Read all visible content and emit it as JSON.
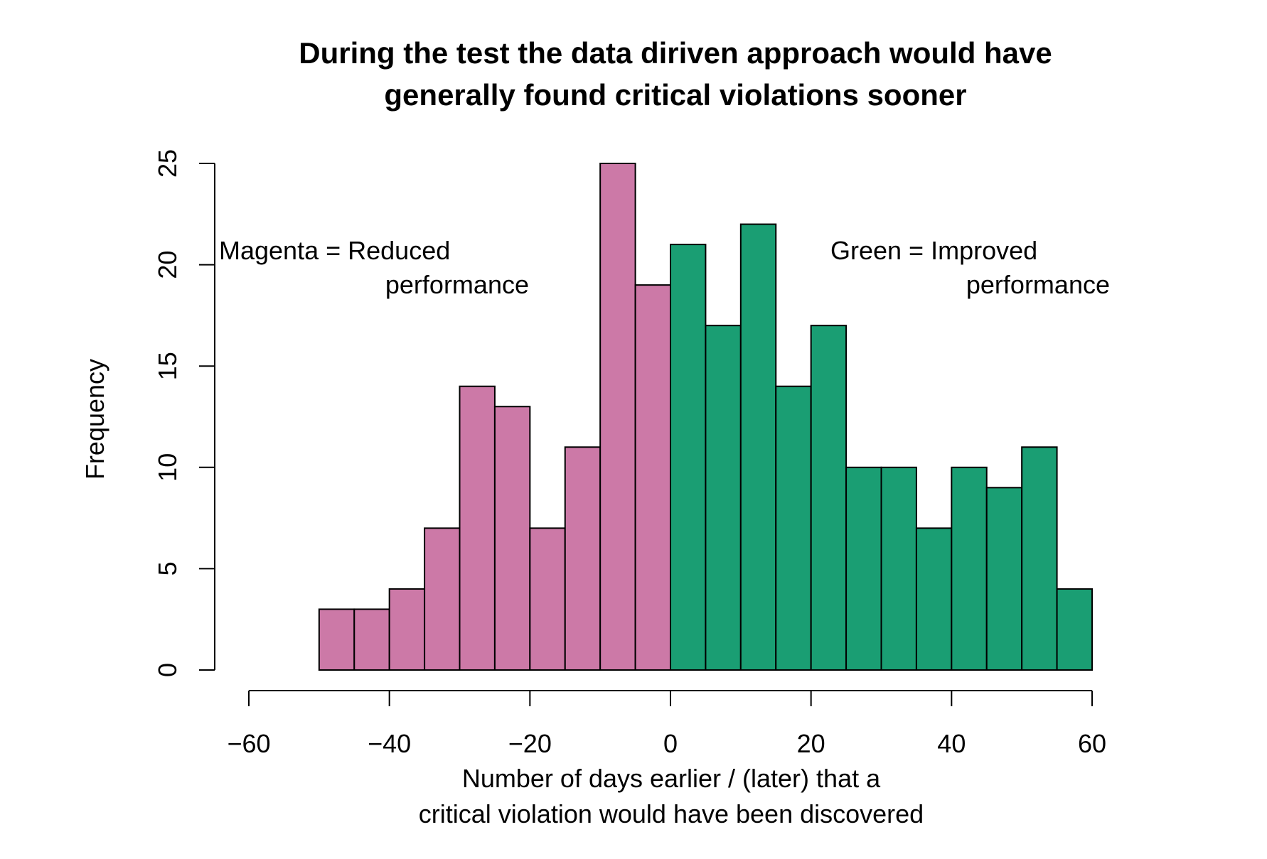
{
  "chart_data": {
    "type": "bar",
    "title_lines": [
      "During the test the data diriven approach would have",
      "generally found critical violations sooner"
    ],
    "xlabel_lines": [
      "Number of days earlier / (later) that a",
      "critical violation would have been discovered"
    ],
    "ylabel": "Frequency",
    "xlim": [
      -60,
      60
    ],
    "ylim": [
      0,
      25
    ],
    "x_ticks": [
      -60,
      -40,
      -20,
      0,
      20,
      40,
      60
    ],
    "x_tick_labels": [
      "−60",
      "−40",
      "−20",
      "0",
      "20",
      "40",
      "60"
    ],
    "y_ticks": [
      0,
      5,
      10,
      15,
      20,
      25
    ],
    "y_tick_labels": [
      "0",
      "5",
      "10",
      "15",
      "20",
      "25"
    ],
    "bin_width": 5,
    "bins": [
      {
        "start": -50,
        "end": -45,
        "value": 3
      },
      {
        "start": -45,
        "end": -40,
        "value": 3
      },
      {
        "start": -40,
        "end": -35,
        "value": 4
      },
      {
        "start": -35,
        "end": -30,
        "value": 7
      },
      {
        "start": -30,
        "end": -25,
        "value": 14
      },
      {
        "start": -25,
        "end": -20,
        "value": 13
      },
      {
        "start": -20,
        "end": -15,
        "value": 7
      },
      {
        "start": -15,
        "end": -10,
        "value": 11
      },
      {
        "start": -10,
        "end": -5,
        "value": 25
      },
      {
        "start": -5,
        "end": 0,
        "value": 19
      },
      {
        "start": 0,
        "end": 5,
        "value": 21
      },
      {
        "start": 5,
        "end": 10,
        "value": 17
      },
      {
        "start": 10,
        "end": 15,
        "value": 22
      },
      {
        "start": 15,
        "end": 20,
        "value": 14
      },
      {
        "start": 20,
        "end": 25,
        "value": 17
      },
      {
        "start": 25,
        "end": 30,
        "value": 10
      },
      {
        "start": 30,
        "end": 35,
        "value": 10
      },
      {
        "start": 35,
        "end": 40,
        "value": 7
      },
      {
        "start": 40,
        "end": 45,
        "value": 10
      },
      {
        "start": 45,
        "end": 50,
        "value": 9
      },
      {
        "start": 50,
        "end": 55,
        "value": 11
      },
      {
        "start": 55,
        "end": 60,
        "value": 4
      }
    ],
    "colors": {
      "negative": "#cc79a7",
      "positive": "#1a9e73",
      "outline": "#000000"
    },
    "annotations": {
      "reduced": [
        "Magenta = Reduced",
        "performance"
      ],
      "improved": [
        "Green = Improved",
        "performance"
      ]
    },
    "grid": false
  }
}
